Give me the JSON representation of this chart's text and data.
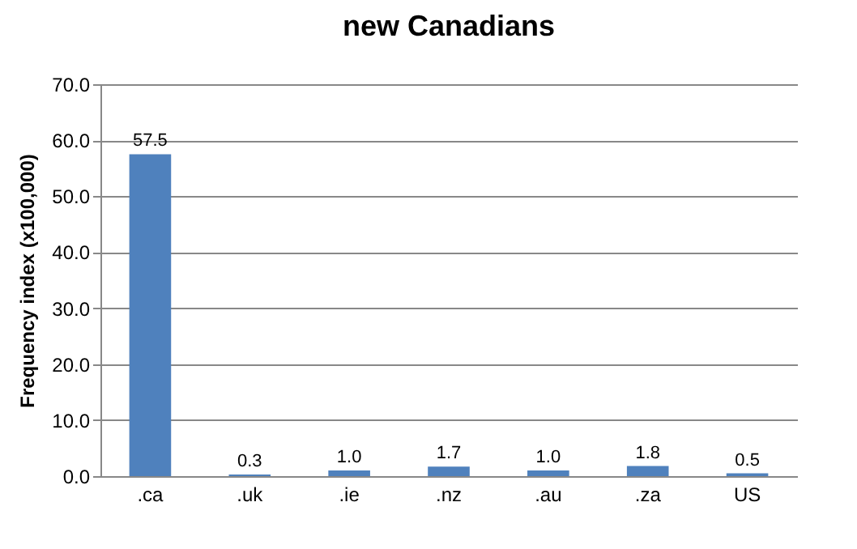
{
  "chart_data": {
    "type": "bar",
    "title": "new Canadians",
    "ylabel": "Frequency index (x100,000)",
    "categories": [
      ".ca",
      ".uk",
      ".ie",
      ".nz",
      ".au",
      ".za",
      "US"
    ],
    "values": [
      57.5,
      0.3,
      1.0,
      1.7,
      1.0,
      1.8,
      0.5
    ],
    "value_labels": [
      "57.5",
      "0.3",
      "1.0",
      "1.7",
      "1.0",
      "1.8",
      "0.5"
    ],
    "color": "#4f81bd",
    "ylim": [
      0,
      70
    ],
    "yticks": [
      {
        "value": 0,
        "label": "0.0"
      },
      {
        "value": 10,
        "label": "10.0"
      },
      {
        "value": 20,
        "label": "20.0"
      },
      {
        "value": 30,
        "label": "30.0"
      },
      {
        "value": 40,
        "label": "40.0"
      },
      {
        "value": 50,
        "label": "50.0"
      },
      {
        "value": 60,
        "label": "60.0"
      },
      {
        "value": 70,
        "label": "70.0"
      }
    ],
    "grid": "y"
  }
}
